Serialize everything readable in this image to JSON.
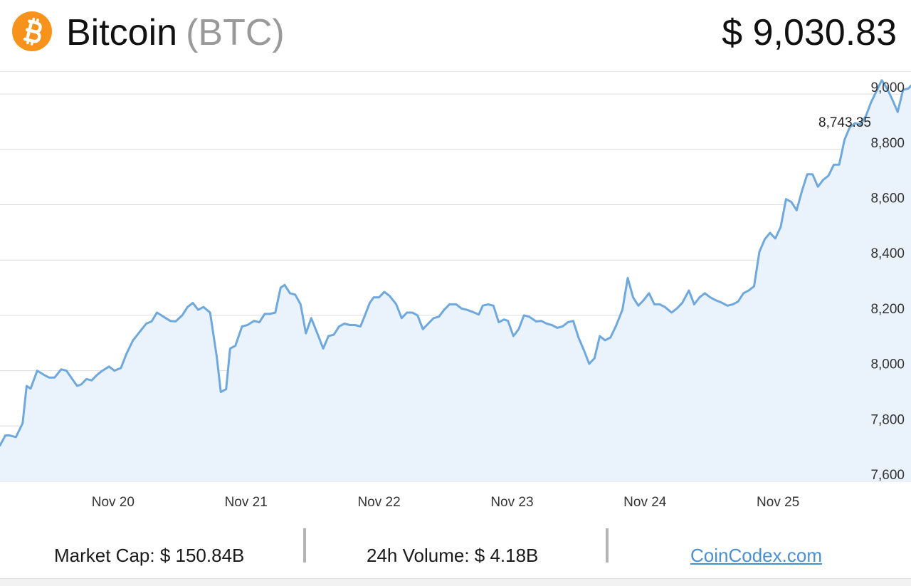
{
  "header": {
    "name": "Bitcoin",
    "symbol": "(BTC)",
    "price": "$ 9,030.83",
    "logo_icon": "bitcoin-logo-icon",
    "logo_color": "#f7931a"
  },
  "chart_data": {
    "type": "area",
    "title": "",
    "xlabel": "",
    "ylabel": "",
    "ylim": [
      7600,
      9080
    ],
    "y_ticks": [
      7600,
      7800,
      8000,
      8200,
      8400,
      8600,
      8800,
      9000
    ],
    "y_tick_labels": [
      "7,600",
      "7,800",
      "8,000",
      "8,200",
      "8,400",
      "8,600",
      "8,800",
      "9,000"
    ],
    "x_tick_labels": [
      "Nov 20",
      "Nov 21",
      "Nov 22",
      "Nov 23",
      "Nov 24",
      "Nov 25"
    ],
    "x_ticks": [
      1.0,
      2.0,
      3.0,
      4.0,
      5.0,
      6.0
    ],
    "xlim": [
      0.15,
      7.0
    ],
    "grid": true,
    "line_color": "#6fa8dc",
    "fill_color": "#eaf3fc",
    "annotation": "8,743.35",
    "series": [
      {
        "values": [
          [
            0.15,
            7730
          ],
          [
            0.19,
            7766
          ],
          [
            0.22,
            7766
          ],
          [
            0.27,
            7760
          ],
          [
            0.32,
            7810
          ],
          [
            0.35,
            7945
          ],
          [
            0.38,
            7935
          ],
          [
            0.43,
            8000
          ],
          [
            0.48,
            7985
          ],
          [
            0.52,
            7975
          ],
          [
            0.56,
            7975
          ],
          [
            0.61,
            8005
          ],
          [
            0.65,
            8000
          ],
          [
            0.7,
            7965
          ],
          [
            0.73,
            7945
          ],
          [
            0.76,
            7950
          ],
          [
            0.8,
            7970
          ],
          [
            0.84,
            7965
          ],
          [
            0.88,
            7985
          ],
          [
            0.92,
            8000
          ],
          [
            0.97,
            8015
          ],
          [
            1.01,
            8000
          ],
          [
            1.06,
            8010
          ],
          [
            1.1,
            8060
          ],
          [
            1.15,
            8110
          ],
          [
            1.2,
            8140
          ],
          [
            1.25,
            8170
          ],
          [
            1.29,
            8178
          ],
          [
            1.33,
            8210
          ],
          [
            1.38,
            8195
          ],
          [
            1.43,
            8180
          ],
          [
            1.47,
            8178
          ],
          [
            1.52,
            8200
          ],
          [
            1.56,
            8230
          ],
          [
            1.6,
            8245
          ],
          [
            1.64,
            8220
          ],
          [
            1.68,
            8230
          ],
          [
            1.73,
            8210
          ],
          [
            1.78,
            8050
          ],
          [
            1.81,
            7923
          ],
          [
            1.85,
            7933
          ],
          [
            1.88,
            8080
          ],
          [
            1.92,
            8090
          ],
          [
            1.97,
            8160
          ],
          [
            2.01,
            8165
          ],
          [
            2.06,
            8180
          ],
          [
            2.1,
            8175
          ],
          [
            2.14,
            8205
          ],
          [
            2.18,
            8205
          ],
          [
            2.22,
            8210
          ],
          [
            2.26,
            8300
          ],
          [
            2.29,
            8310
          ],
          [
            2.33,
            8280
          ],
          [
            2.37,
            8275
          ],
          [
            2.41,
            8240
          ],
          [
            2.45,
            8135
          ],
          [
            2.49,
            8190
          ],
          [
            2.54,
            8130
          ],
          [
            2.58,
            8080
          ],
          [
            2.62,
            8125
          ],
          [
            2.66,
            8130
          ],
          [
            2.7,
            8160
          ],
          [
            2.74,
            8170
          ],
          [
            2.78,
            8165
          ],
          [
            2.82,
            8165
          ],
          [
            2.86,
            8160
          ],
          [
            2.89,
            8195
          ],
          [
            2.93,
            8245
          ],
          [
            2.96,
            8265
          ],
          [
            3.0,
            8265
          ],
          [
            3.04,
            8285
          ],
          [
            3.08,
            8270
          ],
          [
            3.13,
            8240
          ],
          [
            3.17,
            8190
          ],
          [
            3.21,
            8210
          ],
          [
            3.25,
            8210
          ],
          [
            3.29,
            8200
          ],
          [
            3.33,
            8150
          ],
          [
            3.37,
            8170
          ],
          [
            3.41,
            8190
          ],
          [
            3.45,
            8195
          ],
          [
            3.49,
            8220
          ],
          [
            3.53,
            8240
          ],
          [
            3.58,
            8240
          ],
          [
            3.62,
            8225
          ],
          [
            3.66,
            8220
          ],
          [
            3.7,
            8213
          ],
          [
            3.75,
            8203
          ],
          [
            3.78,
            8235
          ],
          [
            3.82,
            8240
          ],
          [
            3.86,
            8235
          ],
          [
            3.9,
            8175
          ],
          [
            3.94,
            8185
          ],
          [
            3.97,
            8180
          ],
          [
            4.01,
            8125
          ],
          [
            4.05,
            8150
          ],
          [
            4.09,
            8200
          ],
          [
            4.13,
            8195
          ],
          [
            4.18,
            8178
          ],
          [
            4.22,
            8180
          ],
          [
            4.26,
            8170
          ],
          [
            4.3,
            8165
          ],
          [
            4.34,
            8155
          ],
          [
            4.38,
            8160
          ],
          [
            4.42,
            8175
          ],
          [
            4.46,
            8180
          ],
          [
            4.5,
            8120
          ],
          [
            4.54,
            8075
          ],
          [
            4.58,
            8025
          ],
          [
            4.62,
            8045
          ],
          [
            4.66,
            8125
          ],
          [
            4.7,
            8110
          ],
          [
            4.74,
            8120
          ],
          [
            4.78,
            8160
          ],
          [
            4.83,
            8220
          ],
          [
            4.87,
            8335
          ],
          [
            4.91,
            8265
          ],
          [
            4.95,
            8235
          ],
          [
            4.99,
            8255
          ],
          [
            5.03,
            8280
          ],
          [
            5.07,
            8240
          ],
          [
            5.11,
            8240
          ],
          [
            5.15,
            8230
          ],
          [
            5.2,
            8210
          ],
          [
            5.24,
            8225
          ],
          [
            5.28,
            8245
          ],
          [
            5.33,
            8290
          ],
          [
            5.37,
            8240
          ],
          [
            5.41,
            8265
          ],
          [
            5.45,
            8280
          ],
          [
            5.49,
            8265
          ],
          [
            5.53,
            8255
          ],
          [
            5.58,
            8245
          ],
          [
            5.62,
            8235
          ],
          [
            5.66,
            8240
          ],
          [
            5.7,
            8250
          ],
          [
            5.74,
            8280
          ],
          [
            5.78,
            8290
          ],
          [
            5.82,
            8305
          ],
          [
            5.86,
            8430
          ],
          [
            5.9,
            8475
          ],
          [
            5.94,
            8498
          ],
          [
            5.98,
            8478
          ],
          [
            6.02,
            8520
          ],
          [
            6.06,
            8620
          ],
          [
            6.1,
            8610
          ],
          [
            6.14,
            8580
          ],
          [
            6.18,
            8650
          ],
          [
            6.22,
            8710
          ],
          [
            6.26,
            8710
          ],
          [
            6.3,
            8665
          ],
          [
            6.34,
            8690
          ],
          [
            6.38,
            8705
          ],
          [
            6.42,
            8745
          ],
          [
            6.46,
            8745
          ],
          [
            6.5,
            8835
          ],
          [
            6.54,
            8880
          ],
          [
            6.58,
            8895
          ],
          [
            6.62,
            8890
          ],
          [
            6.66,
            8920
          ],
          [
            6.7,
            8970
          ],
          [
            6.74,
            9010
          ],
          [
            6.78,
            9050
          ],
          [
            6.82,
            9020
          ],
          [
            6.86,
            8980
          ],
          [
            6.9,
            8935
          ],
          [
            6.94,
            9015
          ],
          [
            6.98,
            9020
          ],
          [
            7.0,
            9030
          ]
        ]
      }
    ]
  },
  "footer": {
    "market_cap": "Market Cap: $ 150.84B",
    "volume": "24h Volume: $ 4.18B",
    "source": "CoinCodex.com"
  }
}
